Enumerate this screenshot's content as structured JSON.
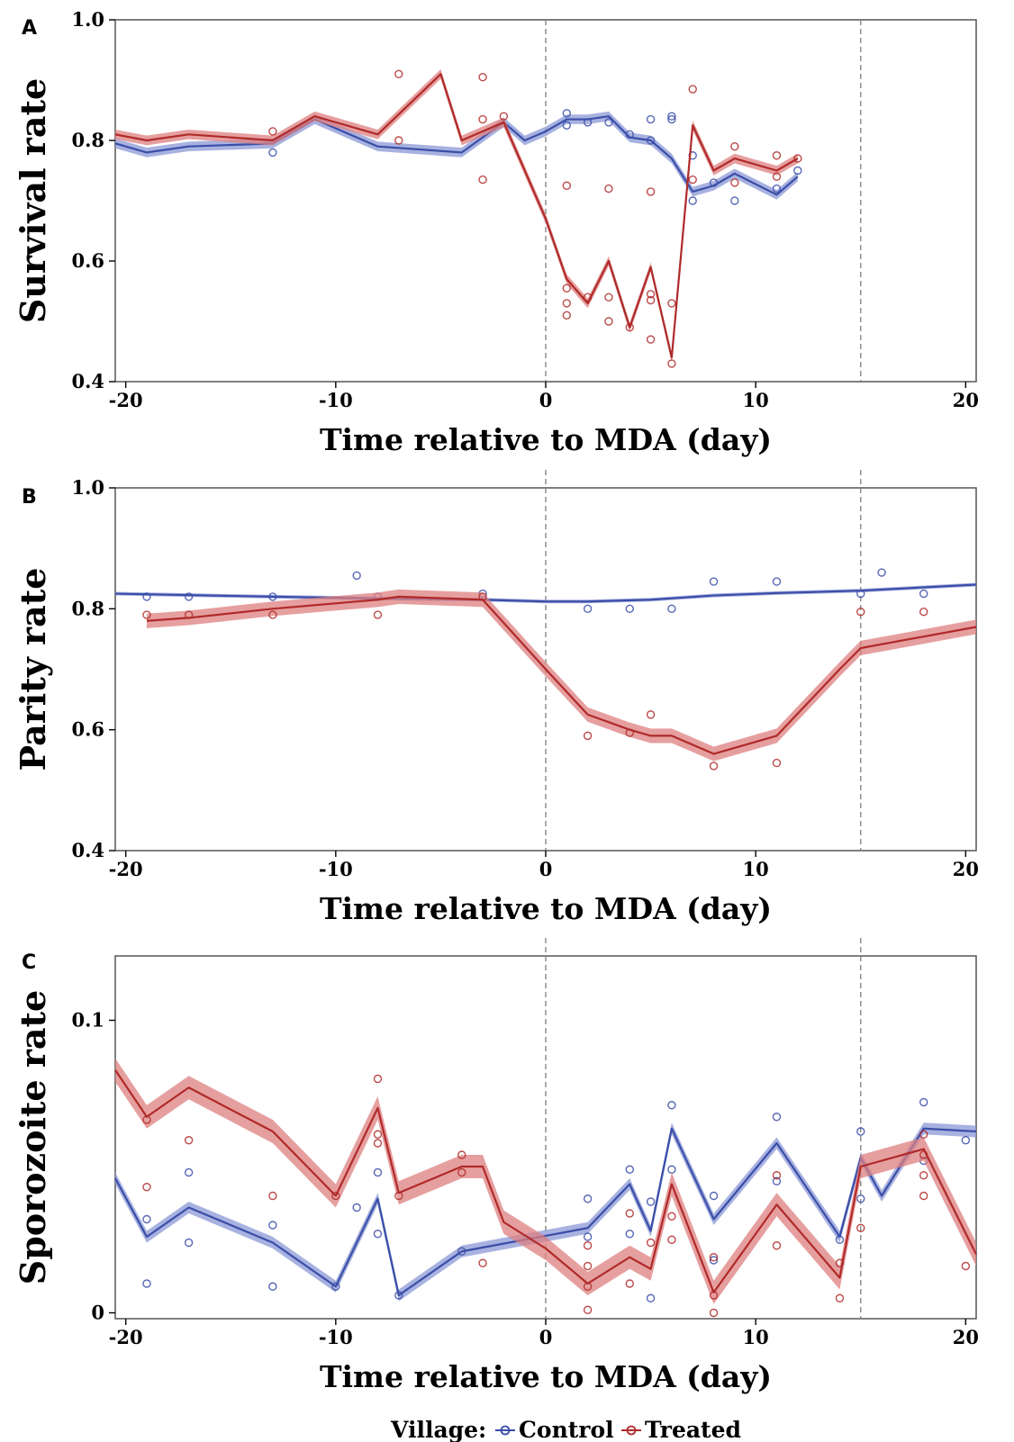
{
  "colors": {
    "control": "#3b4ea8",
    "treated": "#b02a2a",
    "control_band": "#8b98d6",
    "treated_band": "#de7f7f"
  },
  "legend": {
    "title": "Village:",
    "items": [
      "Control",
      "Treated"
    ]
  },
  "chart_data": [
    {
      "type": "line",
      "panel": "A",
      "ylabel": "Survival rate",
      "xlabel": "Time relative to MDA (day)",
      "xlim": [
        -20.5,
        20.5
      ],
      "ylim": [
        0.4,
        1.0
      ],
      "xticks": [
        "-20",
        "-10",
        "0",
        "10",
        "20"
      ],
      "yticks": [
        "0.4",
        "0.6",
        "0.8",
        "1.0"
      ],
      "vlines": [
        0,
        15
      ],
      "series": [
        {
          "name": "Control",
          "x": [
            -20.5,
            -19,
            -17,
            -13,
            -11,
            -8,
            -4,
            -2,
            -1,
            0,
            1,
            2,
            3,
            4,
            5,
            6,
            7,
            8,
            9,
            11,
            12
          ],
          "y": [
            0.795,
            0.78,
            0.79,
            0.795,
            0.835,
            0.79,
            0.78,
            0.83,
            0.8,
            0.815,
            0.835,
            0.835,
            0.84,
            0.805,
            0.8,
            0.77,
            0.715,
            0.725,
            0.745,
            0.71,
            0.74
          ],
          "band": 0.008,
          "points": [
            [
              -13,
              0.78
            ],
            [
              1,
              0.845
            ],
            [
              1,
              0.825
            ],
            [
              2,
              0.83
            ],
            [
              3,
              0.83
            ],
            [
              4,
              0.81
            ],
            [
              5,
              0.835
            ],
            [
              5,
              0.8
            ],
            [
              6,
              0.84
            ],
            [
              6,
              0.835
            ],
            [
              7,
              0.775
            ],
            [
              7,
              0.7
            ],
            [
              8,
              0.73
            ],
            [
              9,
              0.7
            ],
            [
              11,
              0.72
            ],
            [
              12,
              0.75
            ]
          ]
        },
        {
          "name": "Treated",
          "x": [
            -20.5,
            -19,
            -17,
            -13,
            -11,
            -8,
            -5,
            -4,
            -2,
            0,
            1,
            2,
            3,
            4,
            5,
            6,
            7,
            8,
            9,
            11,
            12
          ],
          "y": [
            0.81,
            0.8,
            0.81,
            0.8,
            0.84,
            0.81,
            0.91,
            0.8,
            0.83,
            0.67,
            0.57,
            0.53,
            0.6,
            0.49,
            0.59,
            0.44,
            0.825,
            0.75,
            0.77,
            0.75,
            0.77
          ],
          "band": 0.008,
          "points": [
            [
              -13,
              0.815
            ],
            [
              -7,
              0.91
            ],
            [
              -7,
              0.8
            ],
            [
              -3,
              0.905
            ],
            [
              -3,
              0.835
            ],
            [
              -3,
              0.735
            ],
            [
              -2,
              0.84
            ],
            [
              1,
              0.725
            ],
            [
              1,
              0.555
            ],
            [
              1,
              0.53
            ],
            [
              1,
              0.51
            ],
            [
              2,
              0.54
            ],
            [
              3,
              0.72
            ],
            [
              3,
              0.54
            ],
            [
              3,
              0.5
            ],
            [
              4,
              0.49
            ],
            [
              5,
              0.715
            ],
            [
              5,
              0.545
            ],
            [
              5,
              0.535
            ],
            [
              5,
              0.47
            ],
            [
              6,
              0.53
            ],
            [
              6,
              0.43
            ],
            [
              7,
              0.885
            ],
            [
              7,
              0.735
            ],
            [
              9,
              0.79
            ],
            [
              9,
              0.73
            ],
            [
              11,
              0.775
            ],
            [
              11,
              0.74
            ],
            [
              12,
              0.77
            ]
          ]
        }
      ]
    },
    {
      "type": "line",
      "panel": "B",
      "ylabel": "Parity rate",
      "xlabel": "Time relative to MDA (day)",
      "xlim": [
        -20.5,
        20.5
      ],
      "ylim": [
        0.4,
        1.0
      ],
      "xticks": [
        "-20",
        "-10",
        "0",
        "10",
        "20"
      ],
      "yticks": [
        "0.4",
        "0.6",
        "0.8",
        "1.0"
      ],
      "vlines": [
        0,
        15
      ],
      "series": [
        {
          "name": "Control",
          "x": [
            -20.5,
            -13,
            -8,
            -3,
            0,
            2,
            5,
            8,
            11,
            15,
            20.5
          ],
          "y": [
            0.825,
            0.82,
            0.817,
            0.815,
            0.812,
            0.812,
            0.815,
            0.822,
            0.826,
            0.83,
            0.84
          ],
          "band": 0.003,
          "points": [
            [
              -19,
              0.82
            ],
            [
              -17,
              0.82
            ],
            [
              -13,
              0.82
            ],
            [
              -9,
              0.855
            ],
            [
              -8,
              0.82
            ],
            [
              -3,
              0.825
            ],
            [
              2,
              0.8
            ],
            [
              4,
              0.8
            ],
            [
              6,
              0.8
            ],
            [
              8,
              0.845
            ],
            [
              11,
              0.845
            ],
            [
              15,
              0.825
            ],
            [
              16,
              0.86
            ],
            [
              18,
              0.825
            ]
          ]
        },
        {
          "name": "Treated",
          "x": [
            -19,
            -17,
            -13,
            -8,
            -7,
            -3,
            0,
            2,
            4,
            5,
            6,
            8,
            11,
            14,
            15,
            20.5
          ],
          "y": [
            0.78,
            0.785,
            0.8,
            0.815,
            0.82,
            0.815,
            0.7,
            0.625,
            0.6,
            0.59,
            0.59,
            0.56,
            0.59,
            0.7,
            0.735,
            0.77
          ],
          "band": 0.012,
          "points": [
            [
              -19,
              0.79
            ],
            [
              -17,
              0.79
            ],
            [
              -13,
              0.79
            ],
            [
              -8,
              0.79
            ],
            [
              -3,
              0.82
            ],
            [
              2,
              0.59
            ],
            [
              4,
              0.595
            ],
            [
              5,
              0.625
            ],
            [
              8,
              0.54
            ],
            [
              11,
              0.545
            ],
            [
              15,
              0.795
            ],
            [
              18,
              0.795
            ]
          ]
        }
      ]
    },
    {
      "type": "line",
      "panel": "C",
      "ylabel": "Sporozoite rate",
      "xlabel": "Time relative to MDA (day)",
      "xlim": [
        -20.5,
        20.5
      ],
      "ylim": [
        -0.002,
        0.122
      ],
      "xticks": [
        "-20",
        "-10",
        "0",
        "10",
        "20"
      ],
      "yticks": [
        "0",
        "0.1"
      ],
      "vlines": [
        0,
        15
      ],
      "series": [
        {
          "name": "Control",
          "x": [
            -20.5,
            -19,
            -17,
            -13,
            -10,
            -8,
            -7,
            -4,
            2,
            4,
            5,
            6,
            8,
            11,
            14,
            15,
            16,
            18,
            20.5
          ],
          "y": [
            0.046,
            0.026,
            0.036,
            0.024,
            0.009,
            0.039,
            0.006,
            0.021,
            0.029,
            0.044,
            0.028,
            0.063,
            0.032,
            0.058,
            0.026,
            0.053,
            0.04,
            0.063,
            0.062
          ],
          "band": 0.002,
          "points": [
            [
              -19,
              0.032
            ],
            [
              -19,
              0.01
            ],
            [
              -17,
              0.048
            ],
            [
              -17,
              0.024
            ],
            [
              -13,
              0.03
            ],
            [
              -13,
              0.009
            ],
            [
              -10,
              0.009
            ],
            [
              -9,
              0.036
            ],
            [
              -8,
              0.048
            ],
            [
              -8,
              0.027
            ],
            [
              -7,
              0.006
            ],
            [
              -4,
              0.021
            ],
            [
              2,
              0.039
            ],
            [
              2,
              0.026
            ],
            [
              4,
              0.049
            ],
            [
              4,
              0.027
            ],
            [
              5,
              0.038
            ],
            [
              5,
              0.005
            ],
            [
              6,
              0.071
            ],
            [
              6,
              0.049
            ],
            [
              8,
              0.04
            ],
            [
              8,
              0.018
            ],
            [
              11,
              0.067
            ],
            [
              11,
              0.045
            ],
            [
              14,
              0.025
            ],
            [
              15,
              0.062
            ],
            [
              15,
              0.039
            ],
            [
              18,
              0.072
            ],
            [
              18,
              0.052
            ],
            [
              20,
              0.059
            ]
          ]
        },
        {
          "name": "Treated",
          "x": [
            -20.5,
            -19,
            -17,
            -13,
            -10,
            -8,
            -7,
            -4,
            -3,
            -2,
            0,
            2,
            4,
            5,
            6,
            8,
            11,
            14,
            15,
            18,
            20.5
          ],
          "y": [
            0.083,
            0.067,
            0.077,
            0.062,
            0.04,
            0.07,
            0.041,
            0.05,
            0.05,
            0.031,
            0.022,
            0.01,
            0.019,
            0.015,
            0.044,
            0.007,
            0.037,
            0.012,
            0.05,
            0.056,
            0.02
          ],
          "band": 0.004,
          "points": [
            [
              -19,
              0.066
            ],
            [
              -19,
              0.043
            ],
            [
              -17,
              0.059
            ],
            [
              -13,
              0.04
            ],
            [
              -10,
              0.04
            ],
            [
              -8,
              0.08
            ],
            [
              -8,
              0.061
            ],
            [
              -8,
              0.058
            ],
            [
              -7,
              0.04
            ],
            [
              -4,
              0.054
            ],
            [
              -4,
              0.048
            ],
            [
              -3,
              0.017
            ],
            [
              2,
              0.023
            ],
            [
              2,
              0.016
            ],
            [
              2,
              0.009
            ],
            [
              2,
              0.001
            ],
            [
              4,
              0.034
            ],
            [
              4,
              0.01
            ],
            [
              5,
              0.024
            ],
            [
              6,
              0.033
            ],
            [
              6,
              0.025
            ],
            [
              8,
              0.019
            ],
            [
              8,
              0.006
            ],
            [
              8,
              0.0
            ],
            [
              11,
              0.047
            ],
            [
              11,
              0.023
            ],
            [
              14,
              0.017
            ],
            [
              14,
              0.005
            ],
            [
              15,
              0.029
            ],
            [
              18,
              0.061
            ],
            [
              18,
              0.054
            ],
            [
              18,
              0.047
            ],
            [
              18,
              0.04
            ],
            [
              20,
              0.016
            ]
          ]
        }
      ]
    }
  ]
}
